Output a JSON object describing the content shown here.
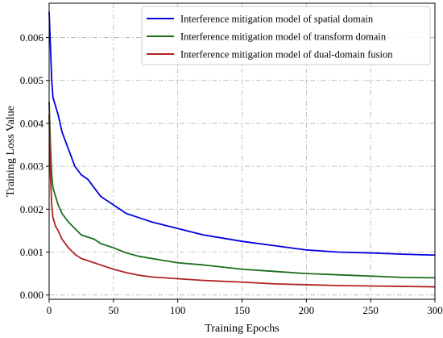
{
  "chart_data": {
    "type": "line",
    "title": "",
    "xlabel": "Training Epochs",
    "ylabel": "Training Loss Value",
    "xlim": [
      0,
      300
    ],
    "ylim": [
      -0.0001,
      0.0068
    ],
    "x_ticks": [
      0,
      50,
      100,
      150,
      200,
      250,
      300
    ],
    "y_ticks": [
      0.0,
      0.001,
      0.002,
      0.003,
      0.004,
      0.005,
      0.006
    ],
    "x_tick_labels": [
      "0",
      "50",
      "100",
      "150",
      "200",
      "250",
      "300"
    ],
    "y_tick_labels": [
      "0.000",
      "0.001",
      "0.002",
      "0.003",
      "0.004",
      "0.005",
      "0.006"
    ],
    "grid": true,
    "legend_position": "top-right",
    "x": [
      0,
      1,
      2,
      3,
      5,
      7,
      10,
      15,
      20,
      25,
      30,
      35,
      40,
      50,
      60,
      70,
      80,
      100,
      120,
      150,
      175,
      200,
      225,
      250,
      275,
      300
    ],
    "series": [
      {
        "name": "Interference mitigation model of spatial domain",
        "color": "#0000dd",
        "values": [
          0.0066,
          0.0058,
          0.005,
          0.0046,
          0.0044,
          0.0042,
          0.0038,
          0.0034,
          0.003,
          0.0028,
          0.0027,
          0.0025,
          0.0023,
          0.0021,
          0.0019,
          0.0018,
          0.0017,
          0.00155,
          0.0014,
          0.00125,
          0.00115,
          0.00105,
          0.001,
          0.00098,
          0.00095,
          0.00093
        ]
      },
      {
        "name": "Interference mitigation model of transform domain",
        "color": "#1a6e1a",
        "values": [
          0.0045,
          0.0035,
          0.0028,
          0.0025,
          0.0023,
          0.0021,
          0.0019,
          0.0017,
          0.00155,
          0.0014,
          0.00135,
          0.0013,
          0.0012,
          0.0011,
          0.00098,
          0.0009,
          0.00085,
          0.00075,
          0.0007,
          0.0006,
          0.00055,
          0.0005,
          0.00047,
          0.00044,
          0.00041,
          0.0004
        ]
      },
      {
        "name": "Interference mitigation model of dual-domain fusion",
        "color": "#b22222",
        "values": [
          0.0042,
          0.0028,
          0.0021,
          0.0018,
          0.0016,
          0.0015,
          0.0013,
          0.0011,
          0.00095,
          0.00085,
          0.0008,
          0.00075,
          0.0007,
          0.0006,
          0.00052,
          0.00046,
          0.00042,
          0.00038,
          0.00034,
          0.0003,
          0.00026,
          0.00024,
          0.00022,
          0.00021,
          0.0002,
          0.00019
        ]
      }
    ]
  }
}
